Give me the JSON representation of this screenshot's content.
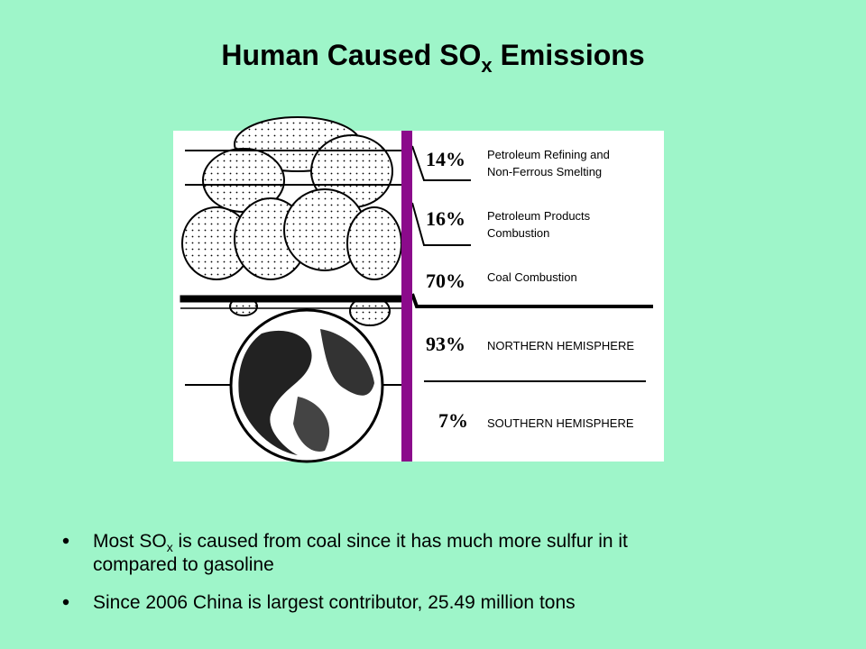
{
  "title": {
    "before": "Human Caused SO",
    "subscript": "x",
    "after": " Emissions"
  },
  "figure": {
    "items": [
      {
        "percent": "14%",
        "lines": [
          "Petroleum Refining and",
          "Non-Ferrous Smelting"
        ]
      },
      {
        "percent": "16%",
        "lines": [
          "Petroleum Products",
          "Combustion"
        ]
      },
      {
        "percent": "70%",
        "lines": [
          "Coal Combustion"
        ]
      },
      {
        "percent": "93%",
        "lines": [
          "NORTHERN HEMISPHERE"
        ]
      },
      {
        "percent": "7%",
        "lines": [
          "SOUTHERN HEMISPHERE"
        ]
      }
    ]
  },
  "bullets": [
    {
      "before": "Most SO",
      "subscript": "x",
      "after": " is caused from coal since it has much more sulfur in it",
      "continuation": "compared to gasoline"
    },
    {
      "before": "Since 2006 China is largest contributor, 25.49 million tons"
    }
  ]
}
